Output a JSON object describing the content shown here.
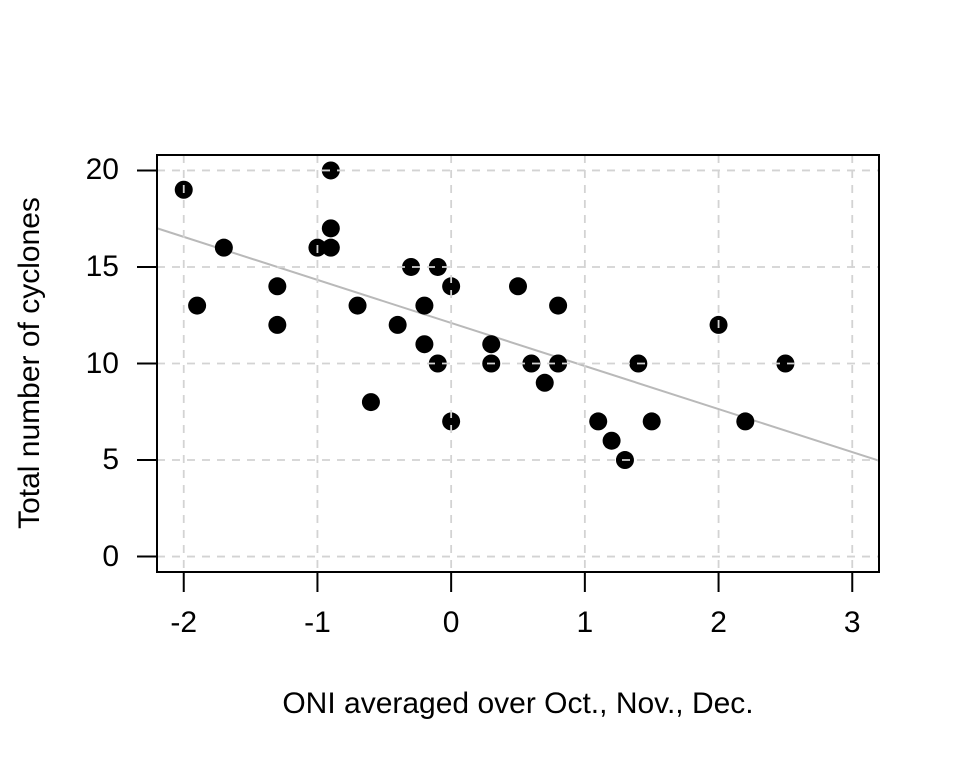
{
  "chart_data": {
    "type": "scatter",
    "title": "",
    "xlabel": "ONI averaged over Oct., Nov., Dec.",
    "ylabel": "Total number of cyclones",
    "x_ticks": [
      "-2",
      "-1",
      "0",
      "1",
      "2",
      "3"
    ],
    "x_tick_values": [
      -2,
      -1,
      0,
      1,
      2,
      3
    ],
    "y_ticks": [
      "0",
      "5",
      "10",
      "15",
      "20"
    ],
    "y_tick_values": [
      0,
      5,
      10,
      15,
      20
    ],
    "x_range": [
      -2.2,
      3.2
    ],
    "y_range": [
      -0.8,
      20.8
    ],
    "grid": true,
    "grid_style": "dashed",
    "legend": "none",
    "points": [
      [
        -2.0,
        19
      ],
      [
        -1.9,
        13
      ],
      [
        -1.7,
        16
      ],
      [
        -1.3,
        14
      ],
      [
        -1.3,
        12
      ],
      [
        -1.0,
        16
      ],
      [
        -0.9,
        20
      ],
      [
        -0.9,
        17
      ],
      [
        -0.9,
        16
      ],
      [
        -0.7,
        13
      ],
      [
        -0.6,
        8
      ],
      [
        -0.4,
        12
      ],
      [
        -0.3,
        15
      ],
      [
        -0.2,
        13
      ],
      [
        -0.2,
        11
      ],
      [
        -0.1,
        15
      ],
      [
        -0.1,
        10
      ],
      [
        0.0,
        14
      ],
      [
        0.0,
        7
      ],
      [
        0.3,
        11
      ],
      [
        0.3,
        10
      ],
      [
        0.5,
        14
      ],
      [
        0.6,
        10
      ],
      [
        0.7,
        9
      ],
      [
        0.8,
        13
      ],
      [
        0.8,
        10
      ],
      [
        1.1,
        7
      ],
      [
        1.2,
        6
      ],
      [
        1.3,
        5
      ],
      [
        1.4,
        10
      ],
      [
        1.5,
        7
      ],
      [
        2.0,
        12
      ],
      [
        2.2,
        7
      ],
      [
        2.5,
        10
      ]
    ],
    "trend_line": {
      "slope": -2.23,
      "intercept": 12.1
    },
    "colors": {
      "point": "#000000",
      "grid": "#d3d3d3",
      "trend": "#b9b9b9",
      "axis": "#000000",
      "background": "#ffffff"
    }
  }
}
